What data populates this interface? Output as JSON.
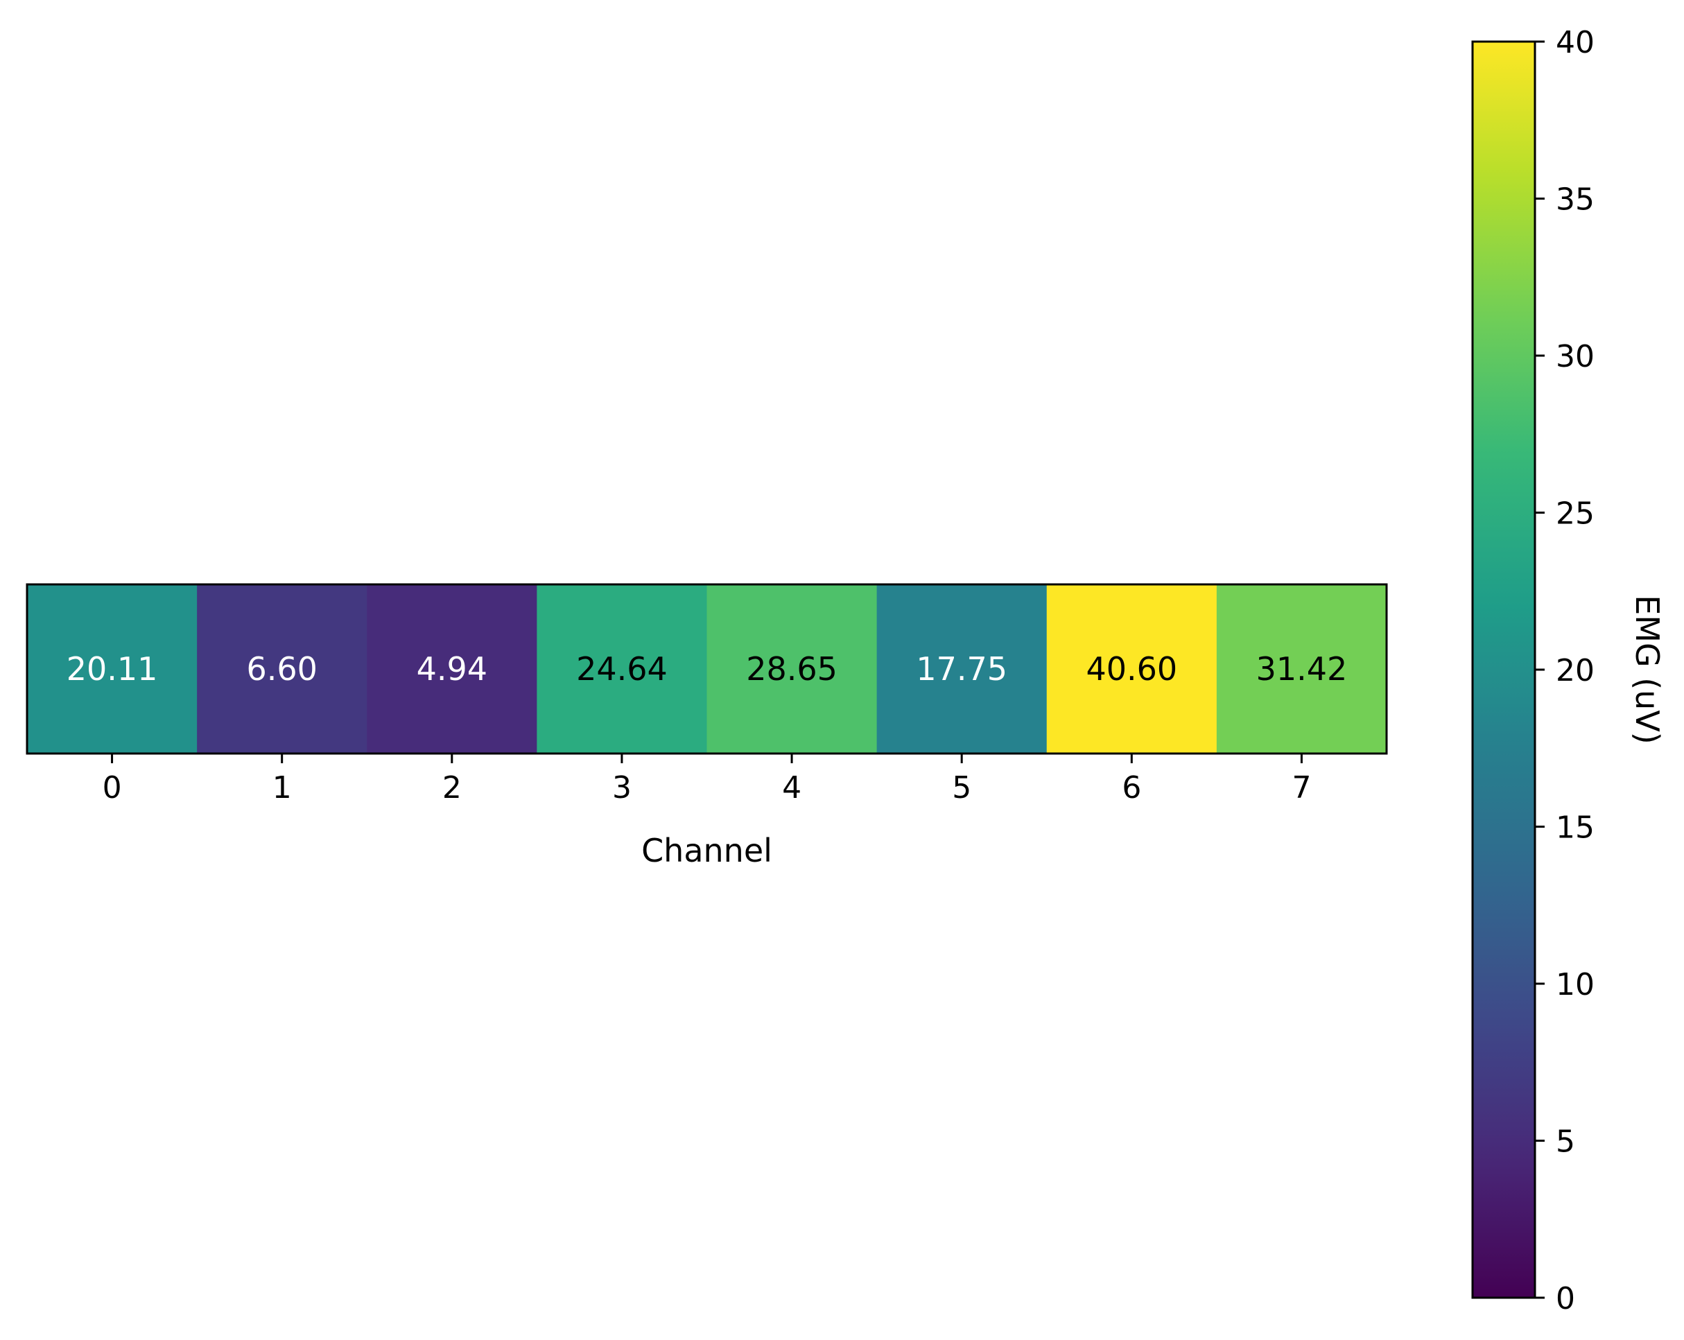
{
  "chart_data": {
    "type": "heatmap",
    "title": "",
    "xlabel": "Channel",
    "ylabel": "",
    "categories": [
      "0",
      "1",
      "2",
      "3",
      "4",
      "5",
      "6",
      "7"
    ],
    "values": [
      20.11,
      6.6,
      4.94,
      24.64,
      28.65,
      17.75,
      40.6,
      31.42
    ],
    "value_labels": [
      "20.11",
      "6.60",
      "4.94",
      "24.64",
      "28.65",
      "17.75",
      "40.60",
      "31.42"
    ],
    "colormap": "viridis",
    "clim": [
      0,
      40
    ],
    "colorbar": {
      "label": "EMG (uV)",
      "ticks": [
        0,
        5,
        10,
        15,
        20,
        25,
        30,
        35,
        40
      ],
      "tick_labels": [
        "0",
        "5",
        "10",
        "15",
        "20",
        "25",
        "30",
        "35",
        "40"
      ]
    },
    "grid": false,
    "label_colors": {
      "dark_cell": "#ffffff",
      "light_cell": "#000000"
    }
  }
}
